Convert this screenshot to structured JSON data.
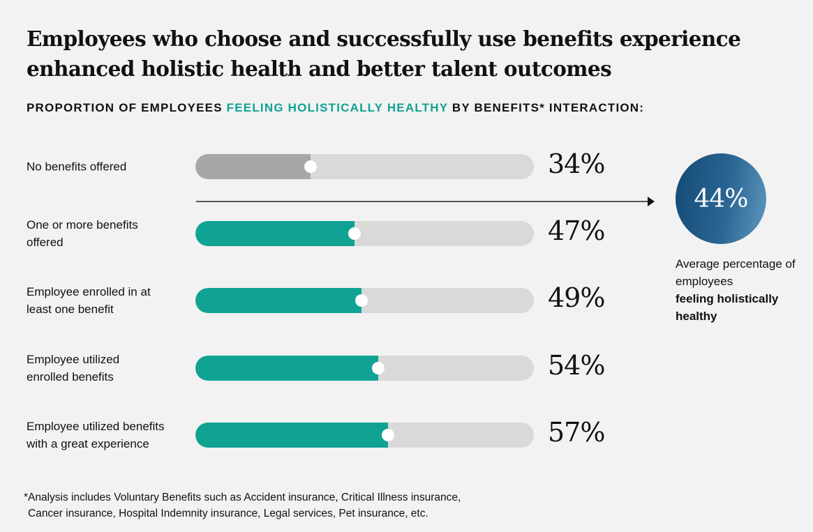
{
  "title": "Employees who choose and successfully use benefits experience enhanced holistic health and better talent outcomes",
  "subtitle": {
    "before": "PROPORTION OF EMPLOYEES ",
    "highlight": "FEELING HOLISTICALLY HEALTHY",
    "after": " BY BENEFITS* INTERACTION:"
  },
  "colors": {
    "accent": "#10a393",
    "baseline": "#a7a7a9",
    "track": "#d9d9d9",
    "circle": "#1f5883"
  },
  "chart_data": {
    "type": "bar",
    "orientation": "horizontal",
    "xlim": [
      0,
      100
    ],
    "categories": [
      "No benefits offered",
      "One or more benefits offered",
      "Employee enrolled in at least one benefit",
      "Employee utilized enrolled benefits",
      "Employee utilized benefits with a great experience"
    ],
    "values": [
      34,
      47,
      49,
      54,
      57
    ],
    "value_labels": [
      "34%",
      "47%",
      "49%",
      "54%",
      "57%"
    ]
  },
  "average": {
    "value": "44%",
    "caption_line1": "Average percentage of employees",
    "caption_bold": "feeling holistically healthy"
  },
  "footnote": {
    "line1": "*Analysis includes Voluntary Benefits such as Accident insurance, Critical Illness insurance,",
    "line2": "Cancer insurance, Hospital Indemnity insurance, Legal services, Pet insurance, etc."
  }
}
